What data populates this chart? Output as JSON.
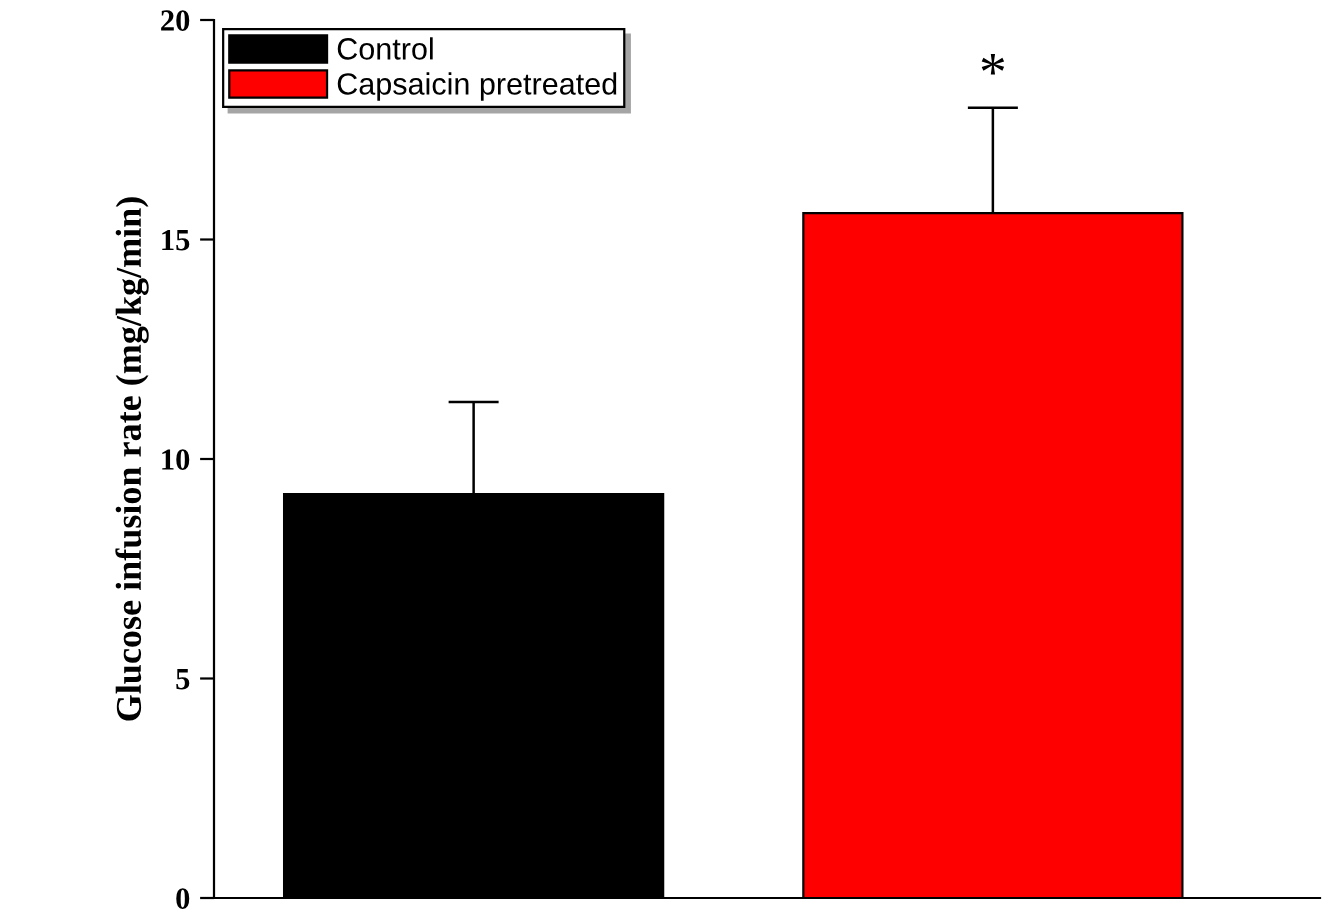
{
  "chart_data": {
    "type": "bar",
    "ylabel": "Glucose infusion rate (mg/kg/min)",
    "categories": [
      null,
      null
    ],
    "series": [
      {
        "name": "Control",
        "color": "#000000",
        "values": [
          9.2,
          null
        ],
        "errors": [
          2.1,
          null
        ]
      },
      {
        "name": "Capsaicin pretreated",
        "color": "#ff0000",
        "values": [
          null,
          15.6
        ],
        "errors": [
          null,
          2.4
        ]
      }
    ],
    "ylim": [
      0,
      20
    ],
    "yticks": [
      0,
      5,
      10,
      15,
      20
    ],
    "grid": false,
    "legend": "top left",
    "annotations": [
      "*"
    ]
  }
}
